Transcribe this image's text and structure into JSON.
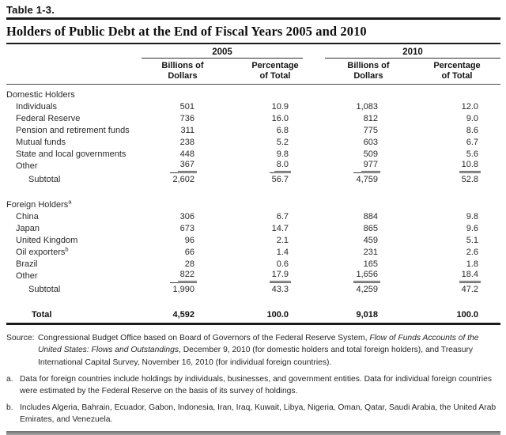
{
  "page": {
    "table_label": "Table 1-3.",
    "title": "Holders of Public Debt at the End of Fiscal Years 2005 and 2010"
  },
  "table": {
    "year_groups": [
      "2005",
      "2010"
    ],
    "sub_headers": [
      "Billions of Dollars",
      "Percentage of Total",
      "Billions of Dollars",
      "Percentage of Total"
    ],
    "rows": [
      {
        "type": "section",
        "label": "Domestic Holders"
      },
      {
        "type": "item",
        "label": "Individuals",
        "values": [
          "501",
          "10.9",
          "1,083",
          "12.0"
        ]
      },
      {
        "type": "item",
        "label": "Federal Reserve",
        "values": [
          "736",
          "16.0",
          "812",
          "9.0"
        ]
      },
      {
        "type": "item",
        "label": "Pension and retirement funds",
        "values": [
          "311",
          "6.8",
          "775",
          "8.6"
        ]
      },
      {
        "type": "item",
        "label": "Mutual funds",
        "values": [
          "238",
          "5.2",
          "603",
          "6.7"
        ]
      },
      {
        "type": "item",
        "label": "State and local governments",
        "values": [
          "448",
          "9.8",
          "509",
          "5.6"
        ]
      },
      {
        "type": "item",
        "label": "Other",
        "underline": true,
        "values": [
          "367",
          "8.0",
          "977",
          "10.8"
        ]
      },
      {
        "type": "subtotal",
        "label": "Subtotal",
        "values": [
          "2,602",
          "56.7",
          "4,759",
          "52.8"
        ]
      },
      {
        "type": "spacer"
      },
      {
        "type": "section",
        "label": "Foreign Holders",
        "sup": "a"
      },
      {
        "type": "item",
        "label": "China",
        "values": [
          "306",
          "6.7",
          "884",
          "9.8"
        ]
      },
      {
        "type": "item",
        "label": "Japan",
        "values": [
          "673",
          "14.7",
          "865",
          "9.6"
        ]
      },
      {
        "type": "item",
        "label": "United Kingdom",
        "values": [
          "96",
          "2.1",
          "459",
          "5.1"
        ]
      },
      {
        "type": "item",
        "label": "Oil exporters",
        "sup": "b",
        "values": [
          "66",
          "1.4",
          "231",
          "2.6"
        ]
      },
      {
        "type": "item",
        "label": "Brazil",
        "values": [
          "28",
          "0.6",
          "165",
          "1.8"
        ]
      },
      {
        "type": "item",
        "label": "Other",
        "underline": true,
        "values": [
          "822",
          "17.9",
          "1,656",
          "18.4"
        ]
      },
      {
        "type": "subtotal",
        "label": "Subtotal",
        "values": [
          "1,990",
          "43.3",
          "4,259",
          "47.2"
        ]
      },
      {
        "type": "spacer"
      },
      {
        "type": "total",
        "label": "Total",
        "values": [
          "4,592",
          "100.0",
          "9,018",
          "100.0"
        ]
      }
    ]
  },
  "source": {
    "label": "Source:",
    "text_before": "Congressional Budget Office based on Board of Governors of the Federal Reserve System, ",
    "italic": "Flow of Funds Accounts of the United States: Flows and Outstandings",
    "text_after": ", December 9, 2010 (for domestic holders and total foreign holders), and Treasury International Capital Survey, November 16, 2010 (for individual foreign countries)."
  },
  "footnotes": [
    {
      "marker": "a.",
      "text": "Data for foreign countries include holdings by individuals, businesses, and government entities. Data for individual foreign countries were estimated by the Federal Reserve on the basis of its survey of holdings."
    },
    {
      "marker": "b.",
      "text": "Includes Algeria, Bahrain, Ecuador, Gabon, Indonesia, Iran, Iraq, Kuwait, Libya, Nigeria, Oman, Qatar, Saudi Arabia, the United Arab Emirates, and Venezuela."
    }
  ]
}
